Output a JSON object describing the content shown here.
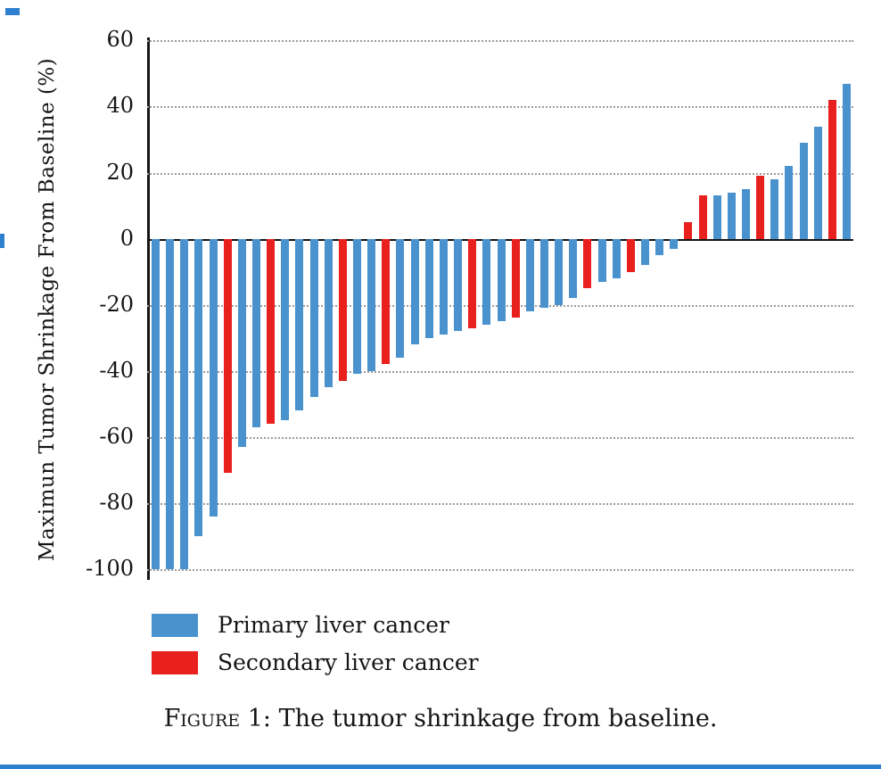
{
  "figure": {
    "caption_label": "Figure 1:",
    "caption_text": "The tumor shrinkage from baseline."
  },
  "legend": [
    {
      "name": "Primary liver cancer",
      "key": "primary"
    },
    {
      "name": "Secondary liver cancer",
      "key": "secondary"
    }
  ],
  "colors": {
    "primary": "#4a92ce",
    "secondary": "#e8201e",
    "axis": "#151515",
    "grid": "#9b9b9b",
    "accent_border": "#2f7fd0"
  },
  "chart_data": {
    "type": "bar",
    "subtype": "waterfall",
    "title": "",
    "xlabel": "",
    "ylabel": "Maximun Tumor Shrinkage From Baseline (%)",
    "ylim": [
      -106,
      62
    ],
    "yticks": [
      60,
      40,
      20,
      0,
      -20,
      -40,
      -60,
      -80,
      -100
    ],
    "grid": "horizontal dotted lines at each 20% interval, solid baseline at 0",
    "legend_position": "bottom-left",
    "series": [
      {
        "name": "Primary liver cancer",
        "color": "#4a92ce"
      },
      {
        "name": "Secondary liver cancer",
        "color": "#e8201e"
      }
    ],
    "bars": [
      {
        "value": -100,
        "series": "primary"
      },
      {
        "value": -100,
        "series": "primary"
      },
      {
        "value": -100,
        "series": "primary"
      },
      {
        "value": -90,
        "series": "primary"
      },
      {
        "value": -84,
        "series": "primary"
      },
      {
        "value": -71,
        "series": "secondary"
      },
      {
        "value": -63,
        "series": "primary"
      },
      {
        "value": -57,
        "series": "primary"
      },
      {
        "value": -56,
        "series": "secondary"
      },
      {
        "value": -55,
        "series": "primary"
      },
      {
        "value": -52,
        "series": "primary"
      },
      {
        "value": -48,
        "series": "primary"
      },
      {
        "value": -45,
        "series": "primary"
      },
      {
        "value": -43,
        "series": "secondary"
      },
      {
        "value": -41,
        "series": "primary"
      },
      {
        "value": -40,
        "series": "primary"
      },
      {
        "value": -38,
        "series": "secondary"
      },
      {
        "value": -36,
        "series": "primary"
      },
      {
        "value": -32,
        "series": "primary"
      },
      {
        "value": -30,
        "series": "primary"
      },
      {
        "value": -29,
        "series": "primary"
      },
      {
        "value": -28,
        "series": "primary"
      },
      {
        "value": -27,
        "series": "secondary"
      },
      {
        "value": -26,
        "series": "primary"
      },
      {
        "value": -25,
        "series": "primary"
      },
      {
        "value": -24,
        "series": "secondary"
      },
      {
        "value": -22,
        "series": "primary"
      },
      {
        "value": -21,
        "series": "primary"
      },
      {
        "value": -20,
        "series": "primary"
      },
      {
        "value": -18,
        "series": "primary"
      },
      {
        "value": -15,
        "series": "secondary"
      },
      {
        "value": -13,
        "series": "primary"
      },
      {
        "value": -12,
        "series": "primary"
      },
      {
        "value": -10,
        "series": "secondary"
      },
      {
        "value": -8,
        "series": "primary"
      },
      {
        "value": -5,
        "series": "primary"
      },
      {
        "value": -3,
        "series": "primary"
      },
      {
        "value": 5,
        "series": "secondary"
      },
      {
        "value": 13,
        "series": "secondary"
      },
      {
        "value": 13,
        "series": "primary"
      },
      {
        "value": 14,
        "series": "primary"
      },
      {
        "value": 15,
        "series": "primary"
      },
      {
        "value": 19,
        "series": "secondary"
      },
      {
        "value": 18,
        "series": "primary"
      },
      {
        "value": 22,
        "series": "primary"
      },
      {
        "value": 29,
        "series": "primary"
      },
      {
        "value": 34,
        "series": "primary"
      },
      {
        "value": 42,
        "series": "secondary"
      },
      {
        "value": 47,
        "series": "primary"
      }
    ]
  }
}
